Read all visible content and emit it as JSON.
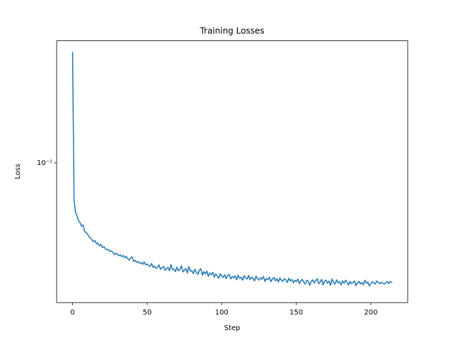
{
  "chart_data": {
    "type": "line",
    "title": "Training Losses",
    "xlabel": "Step",
    "ylabel": "Loss",
    "color": "#1f77b4",
    "yscale": "log",
    "grid": false,
    "xlim": [
      -10.7,
      224.7
    ],
    "xticks": [
      0,
      50,
      100,
      150,
      200
    ],
    "ylim": [
      0.01305,
      0.593
    ],
    "yticks": [
      {
        "value": 0.1,
        "label": "10⁻¹"
      }
    ],
    "x": [
      0,
      1,
      2,
      3,
      4,
      5,
      6,
      7,
      8,
      9,
      10,
      11,
      12,
      13,
      14,
      15,
      16,
      17,
      18,
      19,
      20,
      21,
      22,
      23,
      24,
      25,
      26,
      27,
      28,
      29,
      30,
      31,
      32,
      33,
      34,
      35,
      36,
      37,
      38,
      39,
      40,
      41,
      42,
      43,
      44,
      45,
      46,
      47,
      48,
      49,
      50,
      51,
      52,
      53,
      54,
      55,
      56,
      57,
      58,
      59,
      60,
      61,
      62,
      63,
      64,
      65,
      66,
      67,
      68,
      69,
      70,
      71,
      72,
      73,
      74,
      75,
      76,
      77,
      78,
      79,
      80,
      81,
      82,
      83,
      84,
      85,
      86,
      87,
      88,
      89,
      90,
      91,
      92,
      93,
      94,
      95,
      96,
      97,
      98,
      99,
      100,
      101,
      102,
      103,
      104,
      105,
      106,
      107,
      108,
      109,
      110,
      111,
      112,
      113,
      114,
      115,
      116,
      117,
      118,
      119,
      120,
      121,
      122,
      123,
      124,
      125,
      126,
      127,
      128,
      129,
      130,
      131,
      132,
      133,
      134,
      135,
      136,
      137,
      138,
      139,
      140,
      141,
      142,
      143,
      144,
      145,
      146,
      147,
      148,
      149,
      150,
      151,
      152,
      153,
      154,
      155,
      156,
      157,
      158,
      159,
      160,
      161,
      162,
      163,
      164,
      165,
      166,
      167,
      168,
      169,
      170,
      171,
      172,
      173,
      174,
      175,
      176,
      177,
      178,
      179,
      180,
      181,
      182,
      183,
      184,
      185,
      186,
      187,
      188,
      189,
      190,
      191,
      192,
      193,
      194,
      195,
      196,
      197,
      198,
      199,
      200,
      201,
      202,
      203,
      204,
      205,
      206,
      207,
      208,
      209,
      210,
      211,
      212,
      213,
      214
    ],
    "values": [
      0.5,
      0.0578,
      0.0485,
      0.0462,
      0.0431,
      0.0418,
      0.0398,
      0.0405,
      0.0371,
      0.0362,
      0.0355,
      0.0341,
      0.0334,
      0.0325,
      0.0318,
      0.0322,
      0.0307,
      0.0311,
      0.0298,
      0.0305,
      0.0291,
      0.0295,
      0.0286,
      0.0281,
      0.0284,
      0.0275,
      0.0277,
      0.0272,
      0.0263,
      0.0268,
      0.0265,
      0.0258,
      0.0262,
      0.0255,
      0.0259,
      0.0251,
      0.0256,
      0.0247,
      0.0243,
      0.0251,
      0.0254,
      0.0238,
      0.0241,
      0.0235,
      0.0237,
      0.0231,
      0.0234,
      0.0228,
      0.0236,
      0.0226,
      0.0229,
      0.0224,
      0.0221,
      0.0231,
      0.0218,
      0.0222,
      0.0215,
      0.0219,
      0.0226,
      0.0212,
      0.0217,
      0.0221,
      0.0209,
      0.0214,
      0.0218,
      0.0208,
      0.0227,
      0.0211,
      0.0213,
      0.0205,
      0.0219,
      0.0207,
      0.0212,
      0.0223,
      0.0204,
      0.0209,
      0.0215,
      0.0201,
      0.0221,
      0.0206,
      0.0208,
      0.0199,
      0.0212,
      0.0203,
      0.0197,
      0.0209,
      0.0214,
      0.0195,
      0.0205,
      0.0198,
      0.0207,
      0.0191,
      0.0201,
      0.0196,
      0.0203,
      0.0189,
      0.0198,
      0.0193,
      0.0186,
      0.0199,
      0.0192,
      0.0188,
      0.0196,
      0.0185,
      0.0194,
      0.0197,
      0.0184,
      0.0191,
      0.0187,
      0.0193,
      0.0182,
      0.0195,
      0.0186,
      0.0189,
      0.0181,
      0.0193,
      0.0187,
      0.0184,
      0.0194,
      0.0183,
      0.0189,
      0.0186,
      0.0179,
      0.0192,
      0.0185,
      0.0181,
      0.0188,
      0.0183,
      0.0191,
      0.0178,
      0.0186,
      0.0182,
      0.0189,
      0.0177,
      0.0184,
      0.0188,
      0.0179,
      0.0185,
      0.0176,
      0.0187,
      0.0181,
      0.0178,
      0.0185,
      0.0182,
      0.0175,
      0.0186,
      0.0179,
      0.0183,
      0.0174,
      0.0181,
      0.0177,
      0.0184,
      0.0172,
      0.0179,
      0.0183,
      0.0176,
      0.0171,
      0.0181,
      0.0178,
      0.0168,
      0.0177,
      0.0182,
      0.0174,
      0.0179,
      0.0185,
      0.0172,
      0.0176,
      0.0183,
      0.0169,
      0.0178,
      0.0181,
      0.0173,
      0.0179,
      0.0168,
      0.0184,
      0.0175,
      0.0171,
      0.0182,
      0.0174,
      0.0177,
      0.0169,
      0.0179,
      0.0173,
      0.0181,
      0.0176,
      0.0168,
      0.0178,
      0.0172,
      0.0175,
      0.0179,
      0.0167,
      0.0174,
      0.0178,
      0.0171,
      0.0175,
      0.0169,
      0.0181,
      0.0173,
      0.0176,
      0.0166,
      0.0172,
      0.0177,
      0.0174,
      0.0171,
      0.0179,
      0.0175,
      0.0172,
      0.0176,
      0.0173,
      0.0171,
      0.0174,
      0.0177,
      0.0172,
      0.0178,
      0.0175
    ]
  }
}
